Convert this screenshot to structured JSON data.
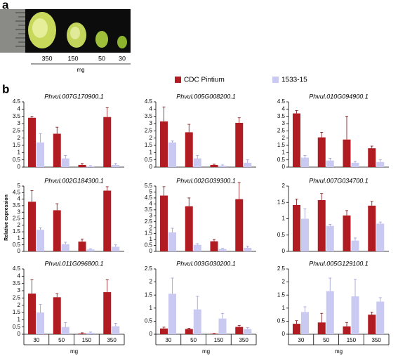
{
  "panel_a": {
    "label": "a",
    "sizes": [
      "350",
      "150",
      "50",
      "30"
    ],
    "unit": "mg"
  },
  "panel_b": {
    "label": "b",
    "ylabel": "Relative expression",
    "categories": [
      "30",
      "50",
      "150",
      "350"
    ],
    "xlabel": "mg"
  },
  "legend": [
    {
      "name": "CDC Pintium",
      "color": "#b01c22"
    },
    {
      "name": "1533-15",
      "color": "#c9c9f2"
    }
  ],
  "chart_data": [
    {
      "type": "bar",
      "title": "Phvul.007G170900.1",
      "ylim": [
        0,
        4.5
      ],
      "yticks": [
        0,
        0.5,
        1,
        1.5,
        2,
        2.5,
        3,
        3.5,
        4,
        4.5
      ],
      "series": [
        {
          "values": [
            3.4,
            2.3,
            0.15,
            3.45
          ],
          "errors": [
            0.1,
            0.45,
            0.1,
            0.65
          ]
        },
        {
          "values": [
            1.7,
            0.6,
            0.05,
            0.15
          ],
          "errors": [
            0.6,
            0.2,
            0.05,
            0.1
          ]
        }
      ]
    },
    {
      "type": "bar",
      "title": "Phvul.005G008200.1",
      "ylim": [
        0,
        4.5
      ],
      "yticks": [
        0,
        0.5,
        1,
        1.5,
        2,
        2.5,
        3,
        3.5,
        4,
        4.5
      ],
      "series": [
        {
          "values": [
            3.15,
            2.4,
            0.15,
            3.05
          ],
          "errors": [
            1.0,
            0.55,
            0.05,
            0.35
          ]
        },
        {
          "values": [
            1.7,
            0.6,
            0.1,
            0.3
          ],
          "errors": [
            0.1,
            0.2,
            0.05,
            0.2
          ]
        }
      ]
    },
    {
      "type": "bar",
      "title": "Phvul.010G094900.1",
      "ylim": [
        0,
        4.5
      ],
      "yticks": [
        0,
        0.5,
        1,
        1.5,
        2,
        2.5,
        3,
        3.5,
        4,
        4.5
      ],
      "series": [
        {
          "values": [
            3.7,
            2.05,
            1.9,
            1.3
          ],
          "errors": [
            0.2,
            0.35,
            1.6,
            0.15
          ]
        },
        {
          "values": [
            0.65,
            0.45,
            0.3,
            0.35
          ],
          "errors": [
            0.15,
            0.15,
            0.1,
            0.15
          ]
        }
      ]
    },
    {
      "type": "bar",
      "title": "Phvul.002G184300.1",
      "ylim": [
        0,
        5
      ],
      "yticks": [
        0,
        0.5,
        1,
        1.5,
        2,
        2.5,
        3,
        3.5,
        4,
        4.5,
        5
      ],
      "series": [
        {
          "values": [
            3.8,
            3.15,
            0.75,
            4.65
          ],
          "errors": [
            0.85,
            0.5,
            0.2,
            0.3
          ]
        },
        {
          "values": [
            1.65,
            0.55,
            0.15,
            0.35
          ],
          "errors": [
            0.15,
            0.15,
            0.05,
            0.15
          ]
        }
      ]
    },
    {
      "type": "bar",
      "title": "Phvul.002G039300.1",
      "ylim": [
        0,
        5.5
      ],
      "yticks": [
        0,
        0.5,
        1,
        1.5,
        2,
        2.5,
        3,
        3.5,
        4,
        4.5,
        5,
        5.5
      ],
      "series": [
        {
          "values": [
            4.7,
            3.8,
            0.85,
            4.4
          ],
          "errors": [
            0.75,
            0.7,
            0.15,
            1.4
          ]
        },
        {
          "values": [
            1.6,
            0.55,
            0.2,
            0.3
          ],
          "errors": [
            0.35,
            0.1,
            0.05,
            0.15
          ]
        }
      ]
    },
    {
      "type": "bar",
      "title": "Phvul.007G034700.1",
      "ylim": [
        0,
        2
      ],
      "yticks": [
        0,
        0.5,
        1,
        1.5,
        2
      ],
      "series": [
        {
          "values": [
            1.42,
            1.57,
            1.1,
            1.4
          ],
          "errors": [
            0.18,
            0.2,
            0.15,
            0.13
          ]
        },
        {
          "values": [
            1.0,
            0.78,
            0.33,
            0.85
          ],
          "errors": [
            0.3,
            0.05,
            0.08,
            0.05
          ]
        }
      ]
    },
    {
      "type": "bar",
      "title": "Phvul.011G096800.1",
      "ylim": [
        0,
        4.5
      ],
      "yticks": [
        0,
        0.5,
        1,
        1.5,
        2,
        2.5,
        3,
        3.5,
        4,
        4.5
      ],
      "series": [
        {
          "values": [
            2.8,
            2.55,
            0.05,
            2.9
          ],
          "errors": [
            0.95,
            0.25,
            0.05,
            0.85
          ]
        },
        {
          "values": [
            1.5,
            0.5,
            0.1,
            0.55
          ],
          "errors": [
            0.55,
            0.3,
            0.05,
            0.2
          ]
        }
      ]
    },
    {
      "type": "bar",
      "title": "Phvul.003G030200.1",
      "ylim": [
        0,
        2.5
      ],
      "yticks": [
        0,
        0.5,
        1,
        1.5,
        2,
        2.5
      ],
      "series": [
        {
          "values": [
            0.22,
            0.2,
            0.02,
            0.28
          ],
          "errors": [
            0.05,
            0.03,
            0.01,
            0.06
          ]
        },
        {
          "values": [
            1.55,
            0.95,
            0.6,
            0.2
          ],
          "errors": [
            0.6,
            0.5,
            0.2,
            0.05
          ]
        }
      ]
    },
    {
      "type": "bar",
      "title": "Phvul.005G129100.1",
      "ylim": [
        0,
        2.5
      ],
      "yticks": [
        0,
        0.5,
        1,
        1.5,
        2,
        2.5
      ],
      "series": [
        {
          "values": [
            0.4,
            0.45,
            0.3,
            0.75
          ],
          "errors": [
            0.12,
            0.35,
            0.15,
            0.1
          ]
        },
        {
          "values": [
            0.85,
            1.65,
            1.45,
            1.25
          ],
          "errors": [
            0.2,
            0.5,
            0.65,
            0.15
          ]
        }
      ]
    }
  ]
}
